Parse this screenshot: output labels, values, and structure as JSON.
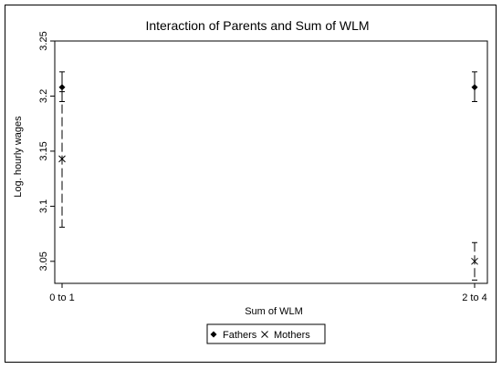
{
  "chart_data": {
    "type": "scatter",
    "title": "Interaction of Parents and Sum of WLM",
    "xlabel": "Sum of WLM",
    "ylabel": "Log. hourly wages",
    "categories": [
      "0  to 1",
      "2 to 4"
    ],
    "ylim": [
      3.03,
      3.25
    ],
    "yticks": [
      3.05,
      3.1,
      3.15,
      3.2,
      3.25
    ],
    "ytick_labels": [
      "3.05",
      "3.1",
      "3.15",
      "3.2",
      "3.25"
    ],
    "grid": false,
    "legend_position": "bottom",
    "series": [
      {
        "name": "Fathers",
        "marker": "diamond",
        "line_style": "solid",
        "color": "#000000",
        "values": [
          3.208,
          3.208
        ],
        "ci_low": [
          3.195,
          3.195
        ],
        "ci_high": [
          3.222,
          3.222
        ]
      },
      {
        "name": "Mothers",
        "marker": "x",
        "line_style": "dashed",
        "color": "#000000",
        "values": [
          3.143,
          3.05
        ],
        "ci_low": [
          3.081,
          3.033
        ],
        "ci_high": [
          3.204,
          3.067
        ]
      }
    ]
  }
}
